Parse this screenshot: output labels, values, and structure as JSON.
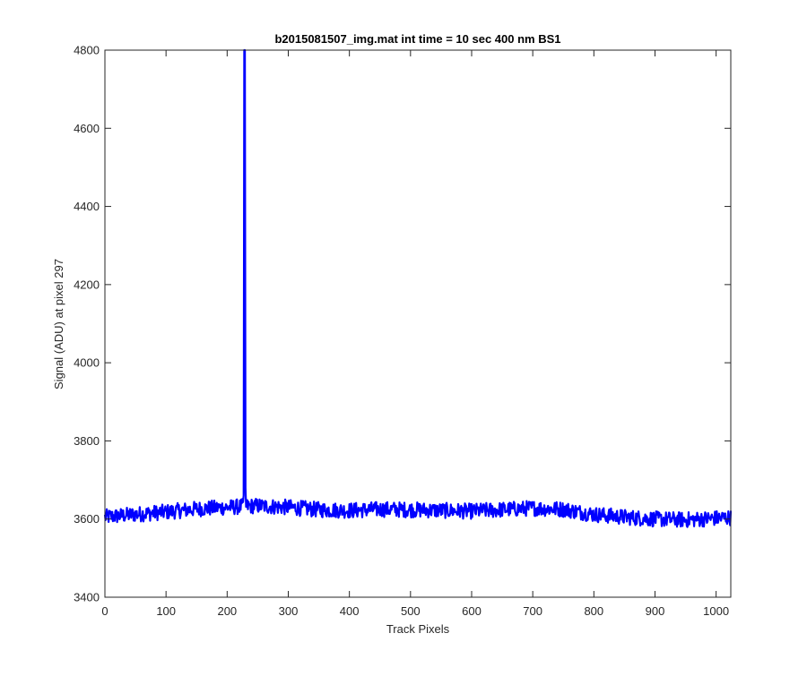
{
  "chart_data": {
    "type": "line",
    "title": "b2015081507_img.mat int time = 10 sec  400 nm BS1",
    "xlabel": "Track Pixels",
    "ylabel": "Signal (ADU) at pixel 297",
    "xlim": [
      0,
      1024
    ],
    "ylim": [
      3400,
      4800
    ],
    "xticks": [
      0,
      100,
      200,
      300,
      400,
      500,
      600,
      700,
      800,
      900,
      1000
    ],
    "yticks": [
      3400,
      3600,
      3800,
      4000,
      4200,
      4400,
      4600,
      4800
    ],
    "grid": false,
    "legend": "none",
    "series": [
      {
        "color": "#0000ff",
        "baseline": [
          [
            0,
            3605
          ],
          [
            50,
            3612
          ],
          [
            100,
            3618
          ],
          [
            150,
            3626
          ],
          [
            200,
            3630
          ],
          [
            250,
            3634
          ],
          [
            300,
            3630
          ],
          [
            350,
            3624
          ],
          [
            400,
            3622
          ],
          [
            450,
            3625
          ],
          [
            500,
            3624
          ],
          [
            550,
            3622
          ],
          [
            600,
            3620
          ],
          [
            650,
            3624
          ],
          [
            700,
            3628
          ],
          [
            750,
            3625
          ],
          [
            800,
            3612
          ],
          [
            850,
            3605
          ],
          [
            900,
            3600
          ],
          [
            950,
            3598
          ],
          [
            1024,
            3604
          ]
        ],
        "noise_amplitude": 20,
        "spikes": [
          [
            227,
            3660
          ],
          [
            228,
            4800
          ],
          [
            229,
            4800
          ],
          [
            230,
            3680
          ]
        ]
      }
    ]
  }
}
